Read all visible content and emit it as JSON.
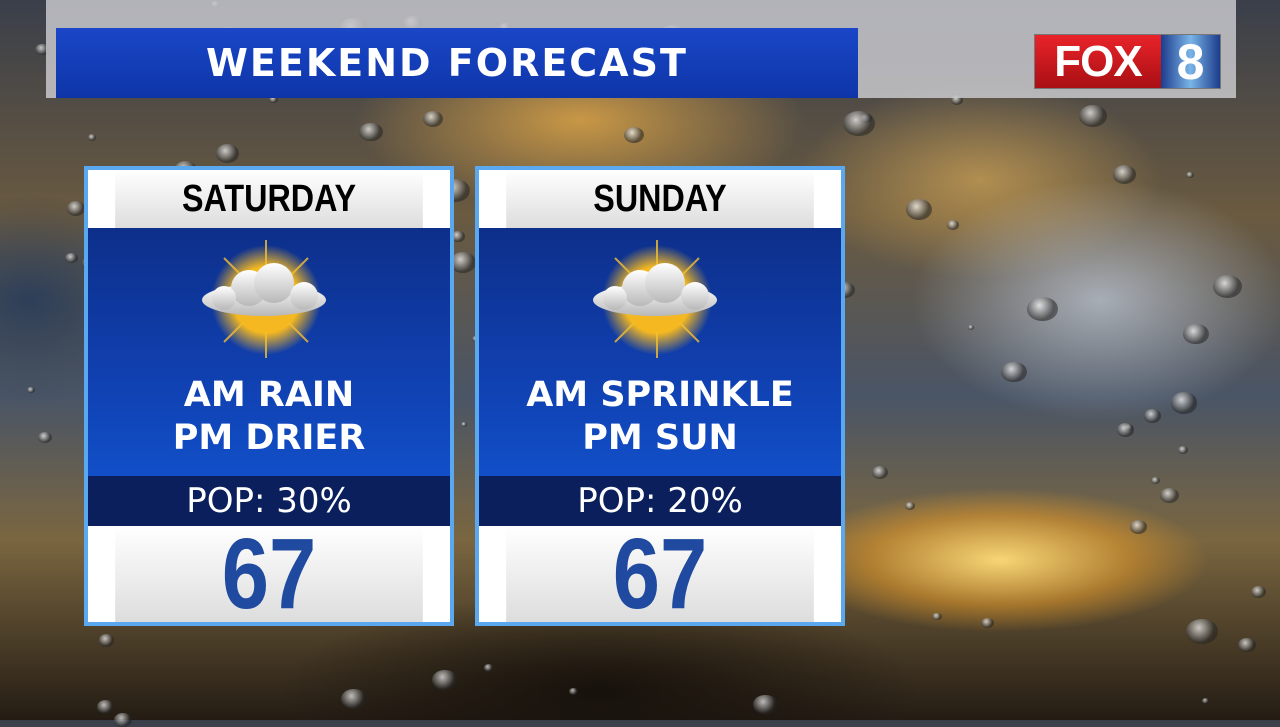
{
  "title": "WEEKEND FORECAST",
  "logo": {
    "text": "FOX 8",
    "brand_red": "#e8242a",
    "brand_blue": "#1c3c8c"
  },
  "days": [
    {
      "name": "SATURDAY",
      "icon": "partly-cloudy-icon",
      "line1": "AM RAIN",
      "line2": "PM DRIER",
      "pop": "POP: 30%",
      "temp": "67"
    },
    {
      "name": "SUNDAY",
      "icon": "partly-cloudy-icon",
      "line1": "AM SPRINKLE",
      "line2": "PM SUN",
      "pop": "POP: 20%",
      "temp": "67"
    }
  ]
}
